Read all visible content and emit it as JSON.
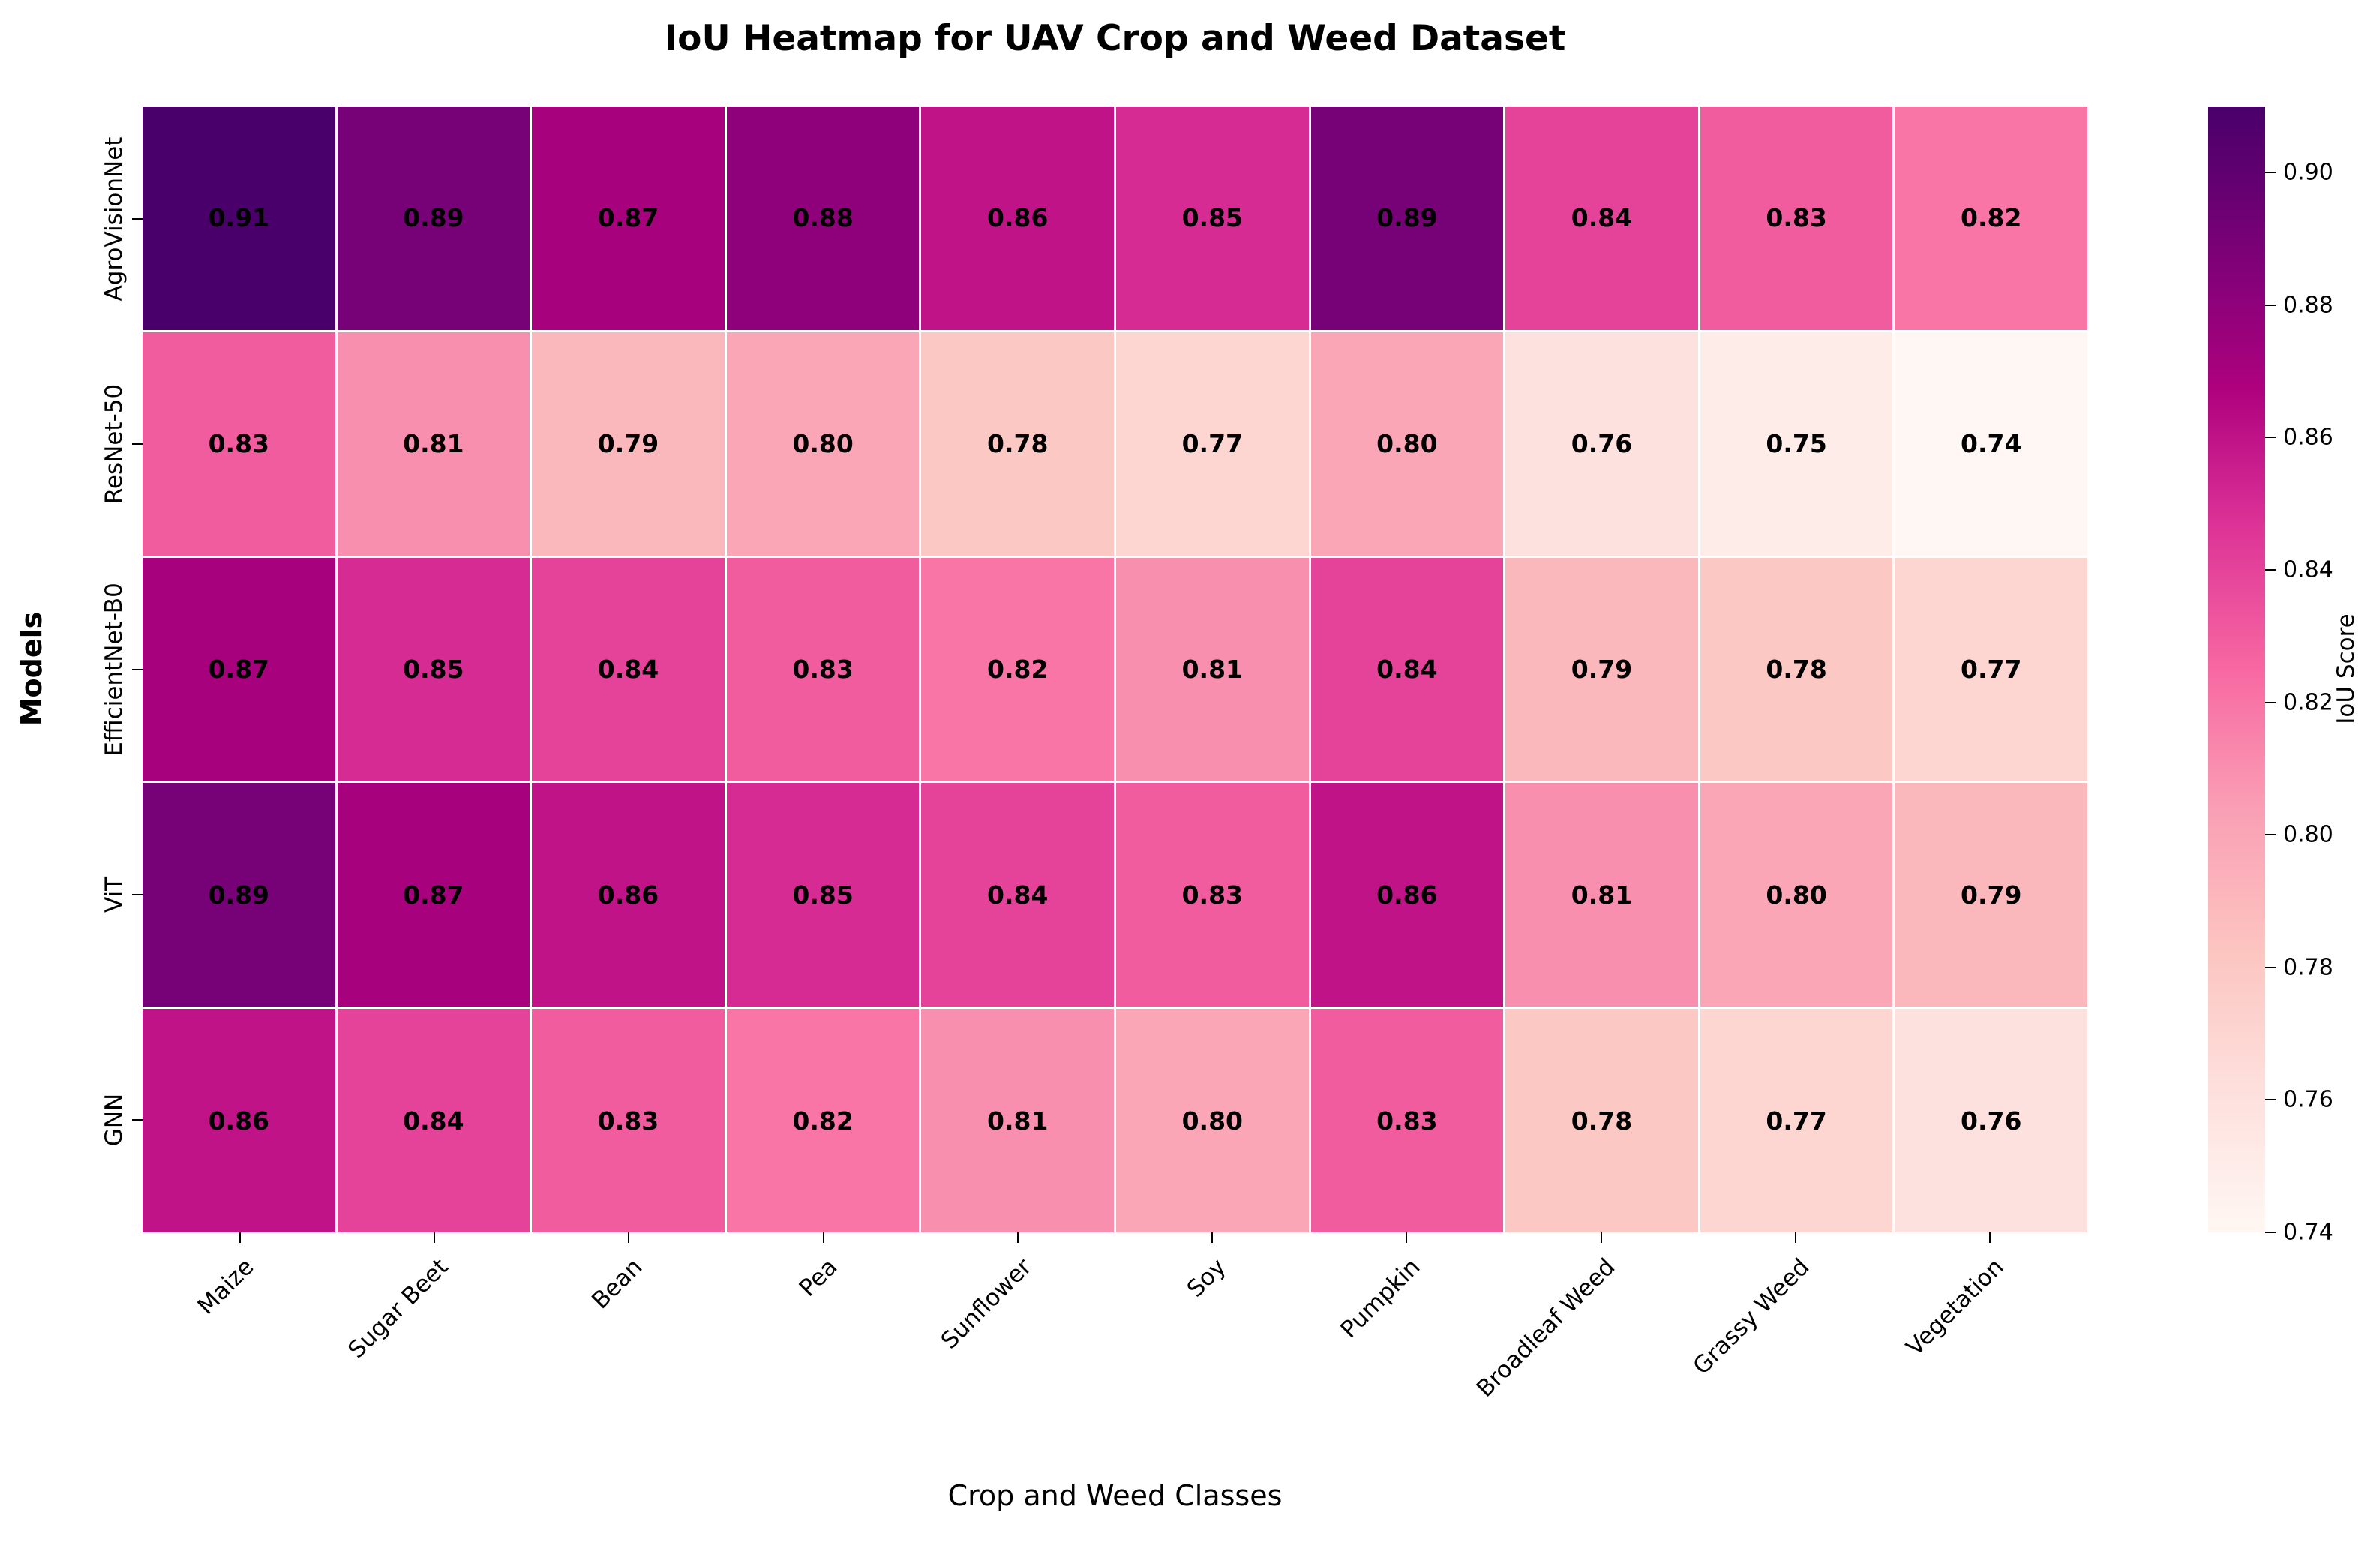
{
  "chart_data": {
    "type": "heatmap",
    "title": "IoU Heatmap for UAV Crop and Weed Dataset",
    "xlabel": "Crop and Weed Classes",
    "ylabel": "Models",
    "categories": [
      "Maize",
      "Sugar Beet",
      "Bean",
      "Pea",
      "Sunflower",
      "Soy",
      "Pumpkin",
      "Broadleaf Weed",
      "Grassy Weed",
      "Vegetation"
    ],
    "series": [
      {
        "name": "AgroVisionNet",
        "values": [
          0.91,
          0.89,
          0.87,
          0.88,
          0.86,
          0.85,
          0.89,
          0.84,
          0.83,
          0.82
        ]
      },
      {
        "name": "ResNet-50",
        "values": [
          0.83,
          0.81,
          0.79,
          0.8,
          0.78,
          0.77,
          0.8,
          0.76,
          0.75,
          0.74
        ]
      },
      {
        "name": "EfficientNet-B0",
        "values": [
          0.87,
          0.85,
          0.84,
          0.83,
          0.82,
          0.81,
          0.84,
          0.79,
          0.78,
          0.77
        ]
      },
      {
        "name": "ViT",
        "values": [
          0.89,
          0.87,
          0.86,
          0.85,
          0.84,
          0.83,
          0.86,
          0.81,
          0.8,
          0.79
        ]
      },
      {
        "name": "GNN",
        "values": [
          0.86,
          0.84,
          0.83,
          0.82,
          0.81,
          0.8,
          0.83,
          0.78,
          0.77,
          0.76
        ]
      }
    ],
    "vmin": 0.74,
    "vmax": 0.91,
    "value_decimals": 2,
    "annotation_color": "#000000",
    "grid_line_color": "#ffffff",
    "colorbar": {
      "label": "IoU Score",
      "tick_labels": [
        "0.90",
        "0.88",
        "0.86",
        "0.84",
        "0.82",
        "0.80",
        "0.78",
        "0.76",
        "0.74"
      ]
    },
    "colormap": {
      "name": "RdPu",
      "stops": [
        [
          0.0,
          "#fff7f3"
        ],
        [
          0.125,
          "#fde0dd"
        ],
        [
          0.25,
          "#fcc5c0"
        ],
        [
          0.375,
          "#fa9fb5"
        ],
        [
          0.5,
          "#f768a1"
        ],
        [
          0.625,
          "#dd3497"
        ],
        [
          0.75,
          "#ae017e"
        ],
        [
          0.875,
          "#7a0177"
        ],
        [
          1.0,
          "#49006a"
        ]
      ]
    }
  }
}
